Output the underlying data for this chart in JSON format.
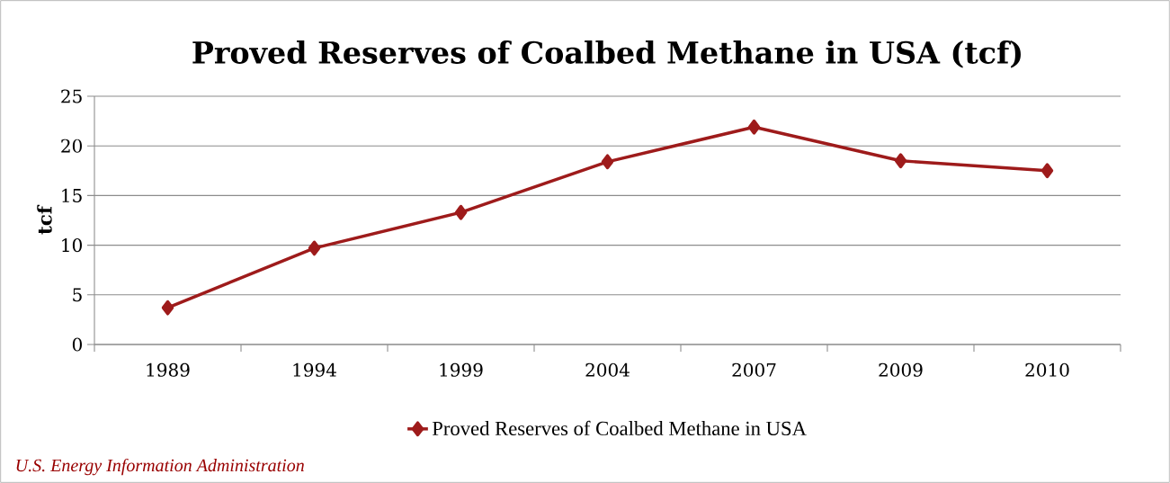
{
  "chart_data": {
    "type": "line",
    "title": "Proved Reserves of Coalbed Methane in USA (tcf)",
    "ylabel": "tcf",
    "categories": [
      "1989",
      "1994",
      "1999",
      "2004",
      "2007",
      "2009",
      "2010"
    ],
    "series": [
      {
        "name": "Proved Reserves of Coalbed Methane in USA",
        "color": "#9e1b1b",
        "values": [
          3.7,
          9.7,
          13.3,
          18.4,
          21.9,
          18.5,
          17.5
        ]
      }
    ],
    "ylim": [
      0,
      25
    ],
    "yticks": [
      0,
      5,
      10,
      15,
      20,
      25
    ],
    "grid": "y",
    "legend": "bottom",
    "marker": "diamond",
    "line_style": "solid",
    "annotations": [
      "U.S. Energy Information Administration"
    ]
  }
}
